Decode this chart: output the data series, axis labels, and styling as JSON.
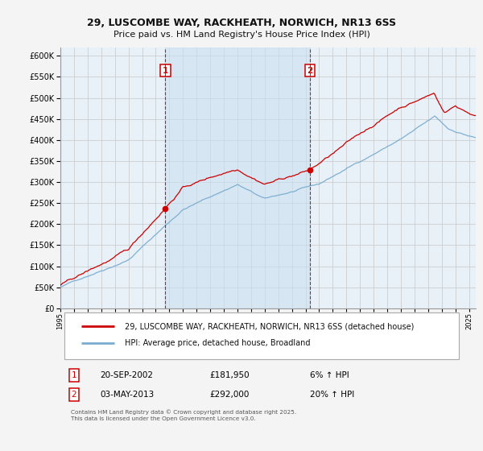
{
  "title_line1": "29, LUSCOMBE WAY, RACKHEATH, NORWICH, NR13 6SS",
  "title_line2": "Price paid vs. HM Land Registry's House Price Index (HPI)",
  "line1_color": "#cc0000",
  "line2_color": "#7aadcf",
  "fill_color": "#c8dff0",
  "bg_color": "#e8f0f8",
  "grid_color": "#c8c8c8",
  "fig_bg": "#f4f4f4",
  "legend1_label": "29, LUSCOMBE WAY, RACKHEATH, NORWICH, NR13 6SS (detached house)",
  "legend2_label": "HPI: Average price, detached house, Broadland",
  "annotation1": [
    "1",
    "20-SEP-2002",
    "£181,950",
    "6% ↑ HPI"
  ],
  "annotation2": [
    "2",
    "03-MAY-2013",
    "£292,000",
    "20% ↑ HPI"
  ],
  "footer": "Contains HM Land Registry data © Crown copyright and database right 2025.\nThis data is licensed under the Open Government Licence v3.0.",
  "vline1_year": 2002.71,
  "vline2_year": 2013.33,
  "ylim": [
    0,
    620000
  ],
  "xlim_start": 1995,
  "xlim_end": 2025.5
}
